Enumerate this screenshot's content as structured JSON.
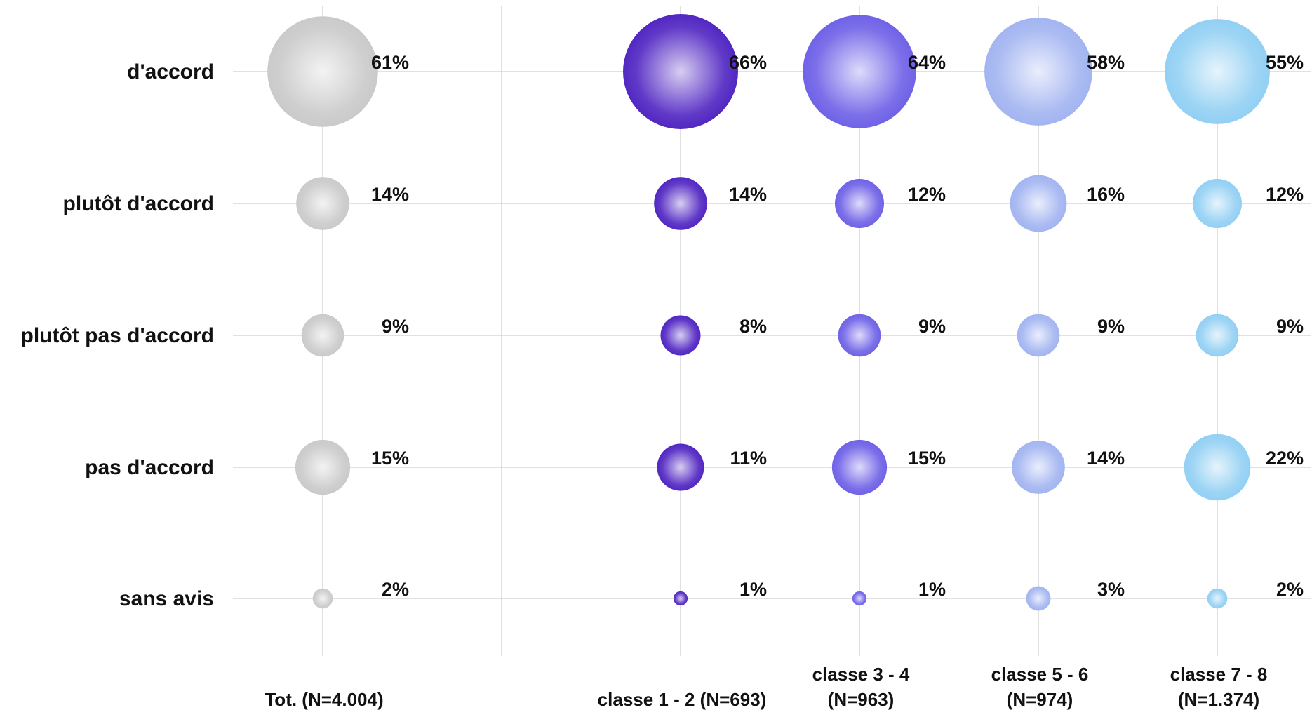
{
  "chart_data": {
    "type": "bubble",
    "rows": [
      "d'accord",
      "plutôt d'accord",
      "plutôt pas d'accord",
      "pas d'accord",
      "sans avis"
    ],
    "columns": [
      {
        "label_lines": [
          "Tot. (N=4.004)"
        ],
        "color": "#c8c8c8",
        "values": [
          61,
          14,
          9,
          15,
          2
        ]
      },
      {
        "label_lines": [
          "classe 1 - 2 (N=693)"
        ],
        "color": "#4b1fc0",
        "values": [
          66,
          14,
          8,
          11,
          1
        ]
      },
      {
        "label_lines": [
          "classe 3 - 4",
          "(N=963)"
        ],
        "color": "#6a5ce6",
        "values": [
          64,
          12,
          9,
          15,
          1
        ]
      },
      {
        "label_lines": [
          "classe 5 - 6",
          "(N=974)"
        ],
        "color": "#9fb2f0",
        "values": [
          58,
          16,
          9,
          14,
          3
        ]
      },
      {
        "label_lines": [
          "classe 7 - 8",
          "(N=1.374)"
        ],
        "color": "#8fcef3",
        "values": [
          55,
          12,
          9,
          22,
          2
        ]
      }
    ],
    "value_suffix": "%",
    "grid": true
  }
}
